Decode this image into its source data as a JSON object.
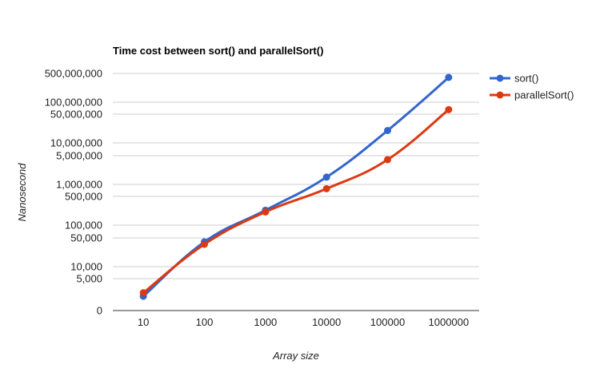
{
  "chart_data": {
    "type": "line",
    "title": "Time cost between sort() and parallelSort()",
    "xlabel": "Array size",
    "ylabel": "Nanosecond",
    "categories": [
      "10",
      "100",
      "1000",
      "10000",
      "100000",
      "1000000"
    ],
    "y_scale": "log",
    "y_ticks": [
      {
        "value": 0,
        "label": "0"
      },
      {
        "value": 5000,
        "label": "5,000"
      },
      {
        "value": 10000,
        "label": "10,000"
      },
      {
        "value": 50000,
        "label": "50,000"
      },
      {
        "value": 100000,
        "label": "100,000"
      },
      {
        "value": 500000,
        "label": "500,000"
      },
      {
        "value": 1000000,
        "label": "1,000,000"
      },
      {
        "value": 5000000,
        "label": "5,000,000"
      },
      {
        "value": 10000000,
        "label": "10,000,000"
      },
      {
        "value": 50000000,
        "label": "50,000,000"
      },
      {
        "value": 100000000,
        "label": "100,000,000"
      },
      {
        "value": 500000000,
        "label": "500,000,000"
      }
    ],
    "series": [
      {
        "name": "sort()",
        "color": "#3366cc",
        "values": [
          1800,
          40000,
          230000,
          1500000,
          20000000,
          400000000
        ]
      },
      {
        "name": "parallelSort()",
        "color": "#dc3912",
        "values": [
          2200,
          35000,
          210000,
          780000,
          4000000,
          65000000
        ]
      }
    ],
    "grid": true,
    "legend_position": "right"
  }
}
